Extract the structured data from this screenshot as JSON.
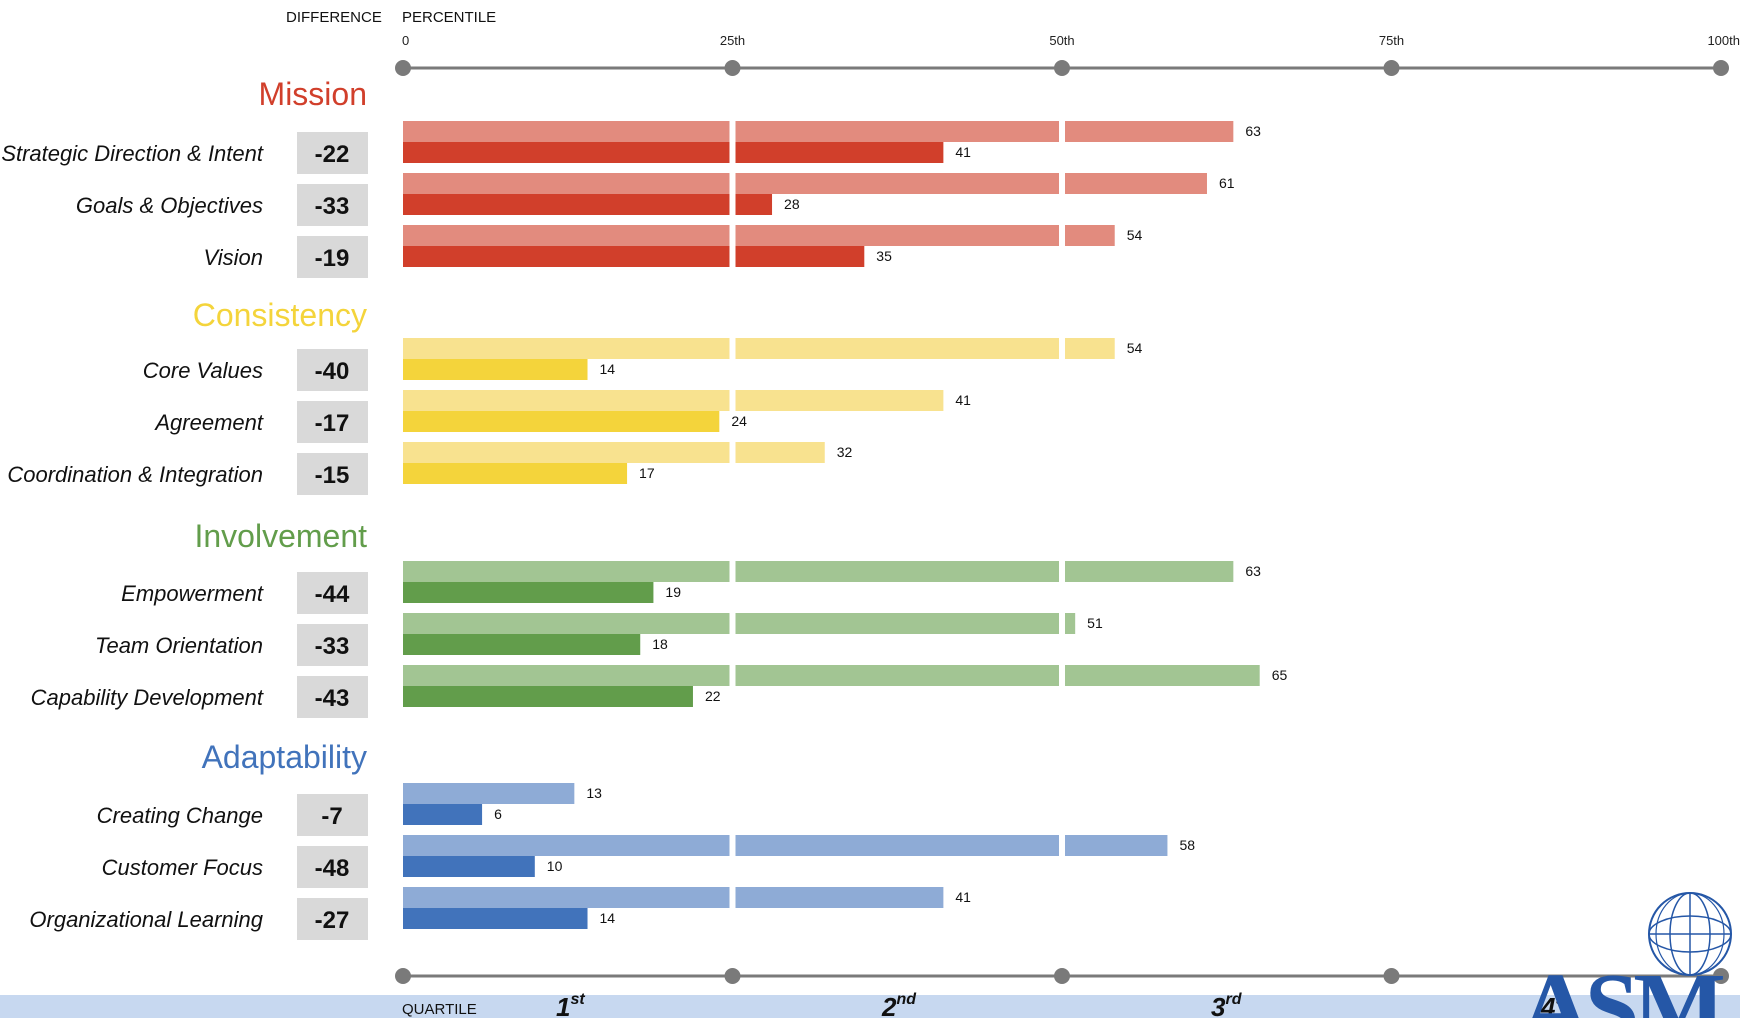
{
  "headers": {
    "difference": "DIFFERENCE",
    "percentile": "PERCENTILE",
    "quartile": "QUARTILE"
  },
  "axis_ticks": [
    "0",
    "25th",
    "50th",
    "75th",
    "100th"
  ],
  "quartiles": [
    {
      "num": "1",
      "sup": "st"
    },
    {
      "num": "2",
      "sup": "nd"
    },
    {
      "num": "3",
      "sup": "rd"
    },
    {
      "num": "4",
      "sup": "th"
    }
  ],
  "chart_data": {
    "type": "bar",
    "orientation": "horizontal",
    "xlim": [
      0,
      100
    ],
    "categories": [
      {
        "name": "Mission",
        "color_light": "#e28b7e",
        "color_dark": "#d13f2b",
        "items": [
          {
            "label": "Strategic Direction & Intent",
            "difference": "-22",
            "light": 63,
            "dark": 41
          },
          {
            "label": "Goals & Objectives",
            "difference": "-33",
            "light": 61,
            "dark": 28
          },
          {
            "label": "Vision",
            "difference": "-19",
            "light": 54,
            "dark": 35
          }
        ]
      },
      {
        "name": "Consistency",
        "color_light": "#f8e28f",
        "color_dark": "#f4d43b",
        "items": [
          {
            "label": "Core Values",
            "difference": "-40",
            "light": 54,
            "dark": 14
          },
          {
            "label": "Agreement",
            "difference": "-17",
            "light": 41,
            "dark": 24
          },
          {
            "label": "Coordination & Integration",
            "difference": "-15",
            "light": 32,
            "dark": 17
          }
        ]
      },
      {
        "name": "Involvement",
        "color_light": "#a2c593",
        "color_dark": "#629d4b",
        "items": [
          {
            "label": "Empowerment",
            "difference": "-44",
            "light": 63,
            "dark": 19
          },
          {
            "label": "Team Orientation",
            "difference": "-33",
            "light": 51,
            "dark": 18
          },
          {
            "label": "Capability Development",
            "difference": "-43",
            "light": 65,
            "dark": 22
          }
        ]
      },
      {
        "name": "Adaptability",
        "color_light": "#8eabd6",
        "color_dark": "#4173bb",
        "items": [
          {
            "label": "Creating Change",
            "difference": "-7",
            "light": 13,
            "dark": 6
          },
          {
            "label": "Customer Focus",
            "difference": "-48",
            "light": 58,
            "dark": 10
          },
          {
            "label": "Organizational Learning",
            "difference": "-27",
            "light": 41,
            "dark": 14
          }
        ]
      }
    ]
  },
  "colors": {
    "axis": "#7a7a7a",
    "difference_box": "#d9d9d9",
    "quartile_band": "#c7d8f0",
    "separator": "#ffffff",
    "logo": "#2557a7"
  },
  "logo": {
    "text": "ASM",
    "icon": "globe-icon"
  }
}
